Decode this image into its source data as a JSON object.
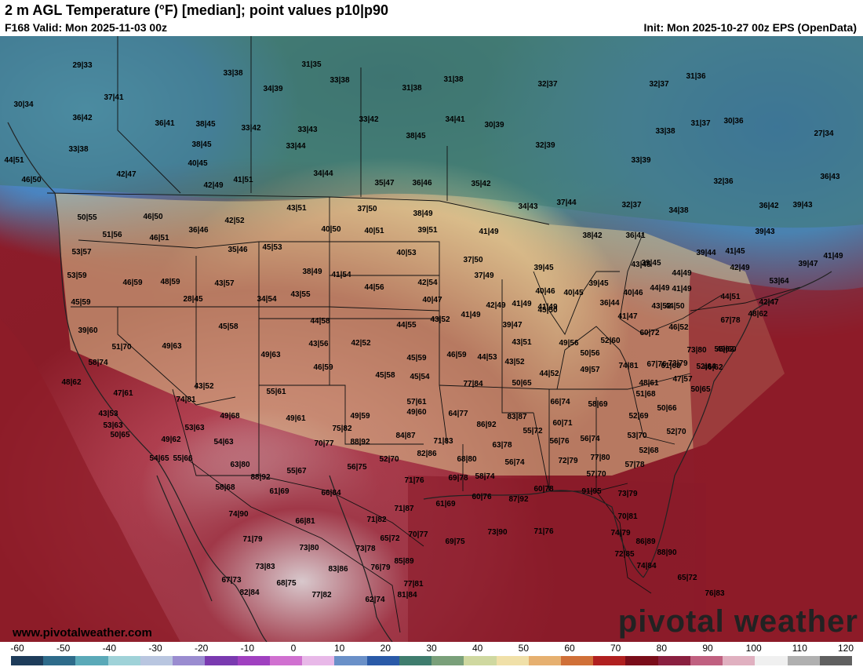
{
  "header": {
    "title": "2 m AGL Temperature (°F) [median]; point values p10|p90",
    "valid": "F168 Valid: Mon 2025-11-03 00z",
    "init": "Init: Mon 2025-10-27 00z EPS (OpenData)"
  },
  "watermark": "www.pivotalweather.com",
  "logo": "pivotal weather",
  "colorbar": {
    "ticks": [
      "-60",
      "-50",
      "-40",
      "-30",
      "-20",
      "-10",
      "0",
      "10",
      "20",
      "30",
      "40",
      "50",
      "60",
      "70",
      "80",
      "90",
      "100",
      "110",
      "120"
    ],
    "colors": [
      "#1e3c5a",
      "#2e6b8a",
      "#5aa9b8",
      "#9fd2d8",
      "#b9c6e0",
      "#9a8cd0",
      "#7a3ab0",
      "#a040c0",
      "#d070d0",
      "#e8b8e8",
      "#6a90c8",
      "#2a5aa8",
      "#3f7d6e",
      "#7aa07a",
      "#cfd8a0",
      "#f0e0a8",
      "#e6b070",
      "#d07038",
      "#b02020",
      "#7a0d1a",
      "#8a2040",
      "#c06080",
      "#e0b0c0",
      "#f0f0f0",
      "#b0b0b0",
      "#606060"
    ]
  },
  "points": [
    {
      "t": "29|33"
    },
    {
      "t": "30|34"
    },
    {
      "t": "37|41"
    },
    {
      "t": "36|42"
    },
    {
      "t": "33|38"
    },
    {
      "t": "44|51"
    },
    {
      "t": "46|50"
    },
    {
      "t": "42|47"
    },
    {
      "t": "36|41"
    },
    {
      "t": "38|45"
    },
    {
      "t": "38|45"
    },
    {
      "t": "40|45"
    },
    {
      "t": "42|49"
    },
    {
      "t": "41|51"
    },
    {
      "t": "33|38"
    },
    {
      "t": "34|39"
    },
    {
      "t": "31|35"
    },
    {
      "t": "33|38"
    },
    {
      "t": "33|42"
    },
    {
      "t": "33|43"
    },
    {
      "t": "33|44"
    },
    {
      "t": "34|44"
    },
    {
      "t": "31|38"
    },
    {
      "t": "31|38"
    },
    {
      "t": "32|37"
    },
    {
      "t": "33|42"
    },
    {
      "t": "34|41"
    },
    {
      "t": "30|39"
    },
    {
      "t": "38|45"
    },
    {
      "t": "32|39"
    },
    {
      "t": "35|47"
    },
    {
      "t": "36|46"
    },
    {
      "t": "35|42"
    },
    {
      "t": "33|39"
    },
    {
      "t": "32|37"
    },
    {
      "t": "31|36"
    },
    {
      "t": "33|38"
    },
    {
      "t": "31|37"
    },
    {
      "t": "30|36"
    },
    {
      "t": "27|34"
    },
    {
      "t": "32|36"
    },
    {
      "t": "36|43"
    },
    {
      "t": "36|42"
    },
    {
      "t": "39|43"
    },
    {
      "t": "50|55"
    },
    {
      "t": "51|56"
    },
    {
      "t": "46|50"
    },
    {
      "t": "46|51"
    },
    {
      "t": "36|46"
    },
    {
      "t": "42|52"
    },
    {
      "t": "43|51"
    },
    {
      "t": "37|50"
    },
    {
      "t": "38|49"
    },
    {
      "t": "40|50"
    },
    {
      "t": "40|51"
    },
    {
      "t": "39|51"
    },
    {
      "t": "34|43"
    },
    {
      "t": "37|44"
    },
    {
      "t": "32|37"
    },
    {
      "t": "34|38"
    },
    {
      "t": "39|43"
    },
    {
      "t": "41|49"
    },
    {
      "t": "38|42"
    },
    {
      "t": "36|41"
    },
    {
      "t": "53|57"
    },
    {
      "t": "35|46"
    },
    {
      "t": "45|53"
    },
    {
      "t": "40|53"
    },
    {
      "t": "37|50"
    },
    {
      "t": "39|44"
    },
    {
      "t": "41|45"
    },
    {
      "t": "39|47"
    },
    {
      "t": "41|49"
    },
    {
      "t": "53|59"
    },
    {
      "t": "46|59"
    },
    {
      "t": "48|59"
    },
    {
      "t": "43|57"
    },
    {
      "t": "38|49"
    },
    {
      "t": "41|54"
    },
    {
      "t": "42|54"
    },
    {
      "t": "37|49"
    },
    {
      "t": "39|45"
    },
    {
      "t": "39|45"
    },
    {
      "t": "43|45"
    },
    {
      "t": "44|49"
    },
    {
      "t": "42|49"
    },
    {
      "t": "53|64"
    },
    {
      "t": "45|59"
    },
    {
      "t": "28|45"
    },
    {
      "t": "34|54"
    },
    {
      "t": "43|55"
    },
    {
      "t": "44|56"
    },
    {
      "t": "40|47"
    },
    {
      "t": "40|46"
    },
    {
      "t": "40|45"
    },
    {
      "t": "39|45"
    },
    {
      "t": "40|46"
    },
    {
      "t": "44|49"
    },
    {
      "t": "41|49"
    },
    {
      "t": "44|51"
    },
    {
      "t": "42|47"
    },
    {
      "t": "36|44"
    },
    {
      "t": "43|52"
    },
    {
      "t": "42|49"
    },
    {
      "t": "41|49"
    },
    {
      "t": "45|50"
    },
    {
      "t": "41|47"
    },
    {
      "t": "44|50"
    },
    {
      "t": "67|78"
    },
    {
      "t": "48|62"
    },
    {
      "t": "39|60"
    },
    {
      "t": "45|58"
    },
    {
      "t": "44|58"
    },
    {
      "t": "44|55"
    },
    {
      "t": "43|52"
    },
    {
      "t": "41|49"
    },
    {
      "t": "39|47"
    },
    {
      "t": "41|49"
    },
    {
      "t": "46|52"
    },
    {
      "t": "60|72"
    },
    {
      "t": "49|60"
    },
    {
      "t": "51|70"
    },
    {
      "t": "49|63"
    },
    {
      "t": "43|56"
    },
    {
      "t": "42|52"
    },
    {
      "t": "43|51"
    },
    {
      "t": "49|56"
    },
    {
      "t": "52|60"
    },
    {
      "t": "73|80"
    },
    {
      "t": "55|62"
    },
    {
      "t": "58|74"
    },
    {
      "t": "49|63"
    },
    {
      "t": "46|59"
    },
    {
      "t": "45|59"
    },
    {
      "t": "46|59"
    },
    {
      "t": "44|53"
    },
    {
      "t": "43|52"
    },
    {
      "t": "50|56"
    },
    {
      "t": "67|76"
    },
    {
      "t": "52|64"
    },
    {
      "t": "48|62"
    },
    {
      "t": "45|58"
    },
    {
      "t": "45|54"
    },
    {
      "t": "44|52"
    },
    {
      "t": "49|57"
    },
    {
      "t": "74|81"
    },
    {
      "t": "73|79"
    },
    {
      "t": "61|68"
    },
    {
      "t": "46|62"
    },
    {
      "t": "47|61"
    },
    {
      "t": "43|52"
    },
    {
      "t": "55|61"
    },
    {
      "t": "77|84"
    },
    {
      "t": "50|65"
    },
    {
      "t": "48|61"
    },
    {
      "t": "47|57"
    },
    {
      "t": "43|53"
    },
    {
      "t": "74|81"
    },
    {
      "t": "57|61"
    },
    {
      "t": "66|74"
    },
    {
      "t": "58|69"
    },
    {
      "t": "51|68"
    },
    {
      "t": "50|65"
    },
    {
      "t": "49|68"
    },
    {
      "t": "49|61"
    },
    {
      "t": "49|59"
    },
    {
      "t": "49|60"
    },
    {
      "t": "64|77"
    },
    {
      "t": "83|87"
    },
    {
      "t": "60|71"
    },
    {
      "t": "52|69"
    },
    {
      "t": "50|66"
    },
    {
      "t": "53|63"
    },
    {
      "t": "53|63"
    },
    {
      "t": "75|82"
    },
    {
      "t": "86|92"
    },
    {
      "t": "55|72"
    },
    {
      "t": "53|70"
    },
    {
      "t": "52|70"
    },
    {
      "t": "50|65"
    },
    {
      "t": "49|62"
    },
    {
      "t": "84|87"
    },
    {
      "t": "71|83"
    },
    {
      "t": "63|78"
    },
    {
      "t": "56|76"
    },
    {
      "t": "56|74"
    },
    {
      "t": "54|63"
    },
    {
      "t": "70|77"
    },
    {
      "t": "88|92"
    },
    {
      "t": "82|86"
    },
    {
      "t": "68|80"
    },
    {
      "t": "52|68"
    },
    {
      "t": "54|65"
    },
    {
      "t": "55|66"
    },
    {
      "t": "63|80"
    },
    {
      "t": "52|70"
    },
    {
      "t": "72|79"
    },
    {
      "t": "77|80"
    },
    {
      "t": "57|78"
    },
    {
      "t": "56|75"
    },
    {
      "t": "56|74"
    },
    {
      "t": "55|67"
    },
    {
      "t": "88|92"
    },
    {
      "t": "71|76"
    },
    {
      "t": "69|78"
    },
    {
      "t": "58|74"
    },
    {
      "t": "57|70"
    },
    {
      "t": "58|68"
    },
    {
      "t": "61|69"
    },
    {
      "t": "66|84"
    },
    {
      "t": "60|76"
    },
    {
      "t": "60|78"
    },
    {
      "t": "91|95"
    },
    {
      "t": "73|79"
    },
    {
      "t": "71|87"
    },
    {
      "t": "61|69"
    },
    {
      "t": "87|92"
    },
    {
      "t": "74|90"
    },
    {
      "t": "66|81"
    },
    {
      "t": "71|82"
    },
    {
      "t": "70|81"
    },
    {
      "t": "71|79"
    },
    {
      "t": "65|72"
    },
    {
      "t": "70|77"
    },
    {
      "t": "69|75"
    },
    {
      "t": "73|90"
    },
    {
      "t": "71|76"
    },
    {
      "t": "74|79"
    },
    {
      "t": "86|89"
    },
    {
      "t": "73|80"
    },
    {
      "t": "73|78"
    },
    {
      "t": "72|85"
    },
    {
      "t": "88|90"
    },
    {
      "t": "73|83"
    },
    {
      "t": "85|89"
    },
    {
      "t": "74|84"
    },
    {
      "t": "76|79"
    },
    {
      "t": "83|86"
    },
    {
      "t": "67|73"
    },
    {
      "t": "77|81"
    },
    {
      "t": "65|72"
    },
    {
      "t": "82|84"
    },
    {
      "t": "68|75"
    },
    {
      "t": "81|84"
    },
    {
      "t": "76|83"
    },
    {
      "t": "77|82"
    },
    {
      "t": "62|74"
    }
  ]
}
